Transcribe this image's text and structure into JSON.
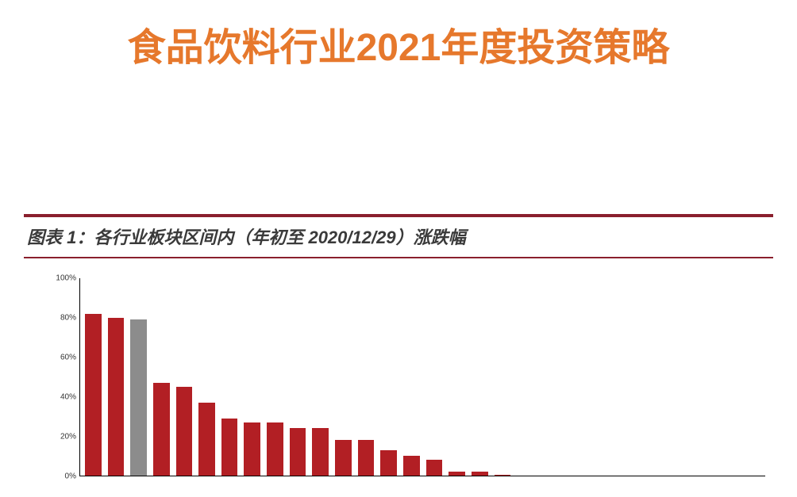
{
  "title": {
    "text": "食品饮料行业2021年度投资策略",
    "color": "#e6782c",
    "fontsize": 48
  },
  "chart": {
    "caption": "图表 1：各行业板块区间内（年初至 2020/12/29）涨跌幅",
    "rule_color": "#8a1f2d",
    "type": "bar",
    "background_color": "#ffffff",
    "ylim": [
      0,
      100
    ],
    "ytick_step": 20,
    "ytick_suffix": "%",
    "yticks": [
      "0%",
      "20%",
      "40%",
      "60%",
      "80%",
      "100%"
    ],
    "default_bar_color": "#b21f24",
    "highlight_bar_color": "#8c8c8c",
    "highlight_index": 2,
    "bar_width_ratio": 0.7,
    "values": [
      82,
      80,
      79,
      47,
      45,
      37,
      29,
      27,
      27,
      24,
      24,
      18,
      18,
      13,
      10,
      8,
      2,
      2,
      0.5,
      0,
      0,
      0,
      0,
      0,
      0,
      0,
      0,
      0,
      0,
      0
    ]
  }
}
